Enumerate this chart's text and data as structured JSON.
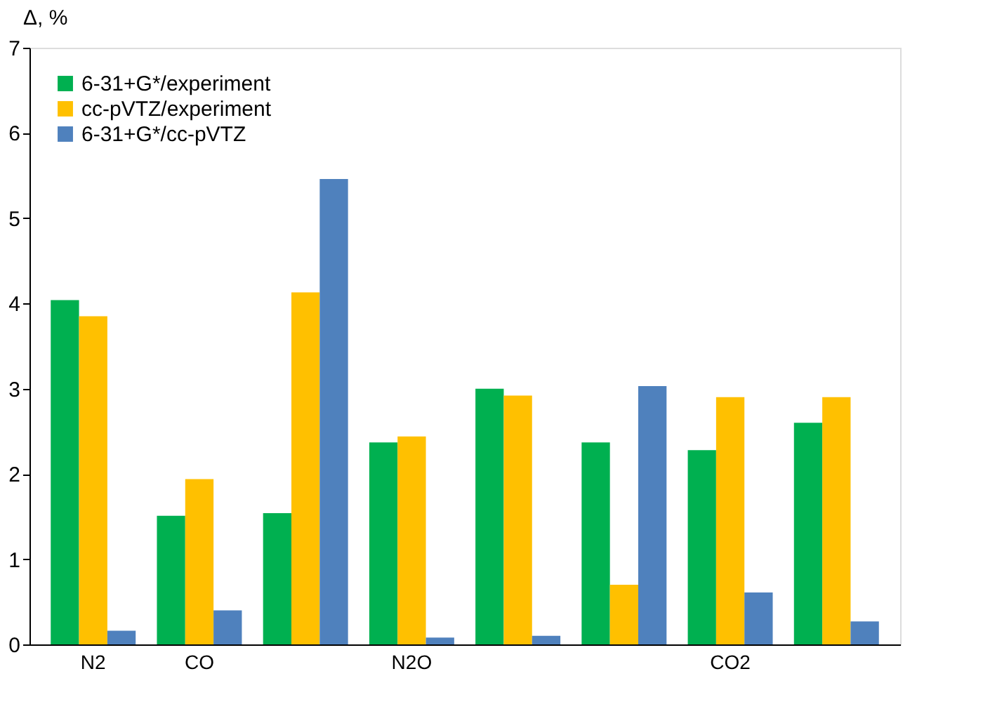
{
  "chart_data": {
    "type": "bar",
    "ylabel": "Δ, %",
    "categories": [
      "N2",
      "CO",
      null,
      "N2O",
      null,
      null,
      "CO2",
      null
    ],
    "series": [
      {
        "name": "6-31+G*/experiment",
        "color": "#00b050",
        "values": [
          4.04,
          1.51,
          1.54,
          2.37,
          3.0,
          2.37,
          2.28,
          2.6
        ]
      },
      {
        "name": "cc-pVTZ/experiment",
        "color": "#ffc000",
        "values": [
          3.85,
          1.94,
          4.13,
          2.44,
          2.92,
          0.7,
          2.9,
          2.9
        ]
      },
      {
        "name": "6-31+G*/cc-pVTZ",
        "color": "#4f81bd",
        "values": [
          0.16,
          0.4,
          5.46,
          0.08,
          0.1,
          3.03,
          0.61,
          0.27
        ]
      }
    ],
    "ylim": [
      0,
      7
    ],
    "yticks": [
      0,
      1,
      2,
      3,
      4,
      5,
      6,
      7
    ],
    "grid": false,
    "legend": "top left"
  }
}
